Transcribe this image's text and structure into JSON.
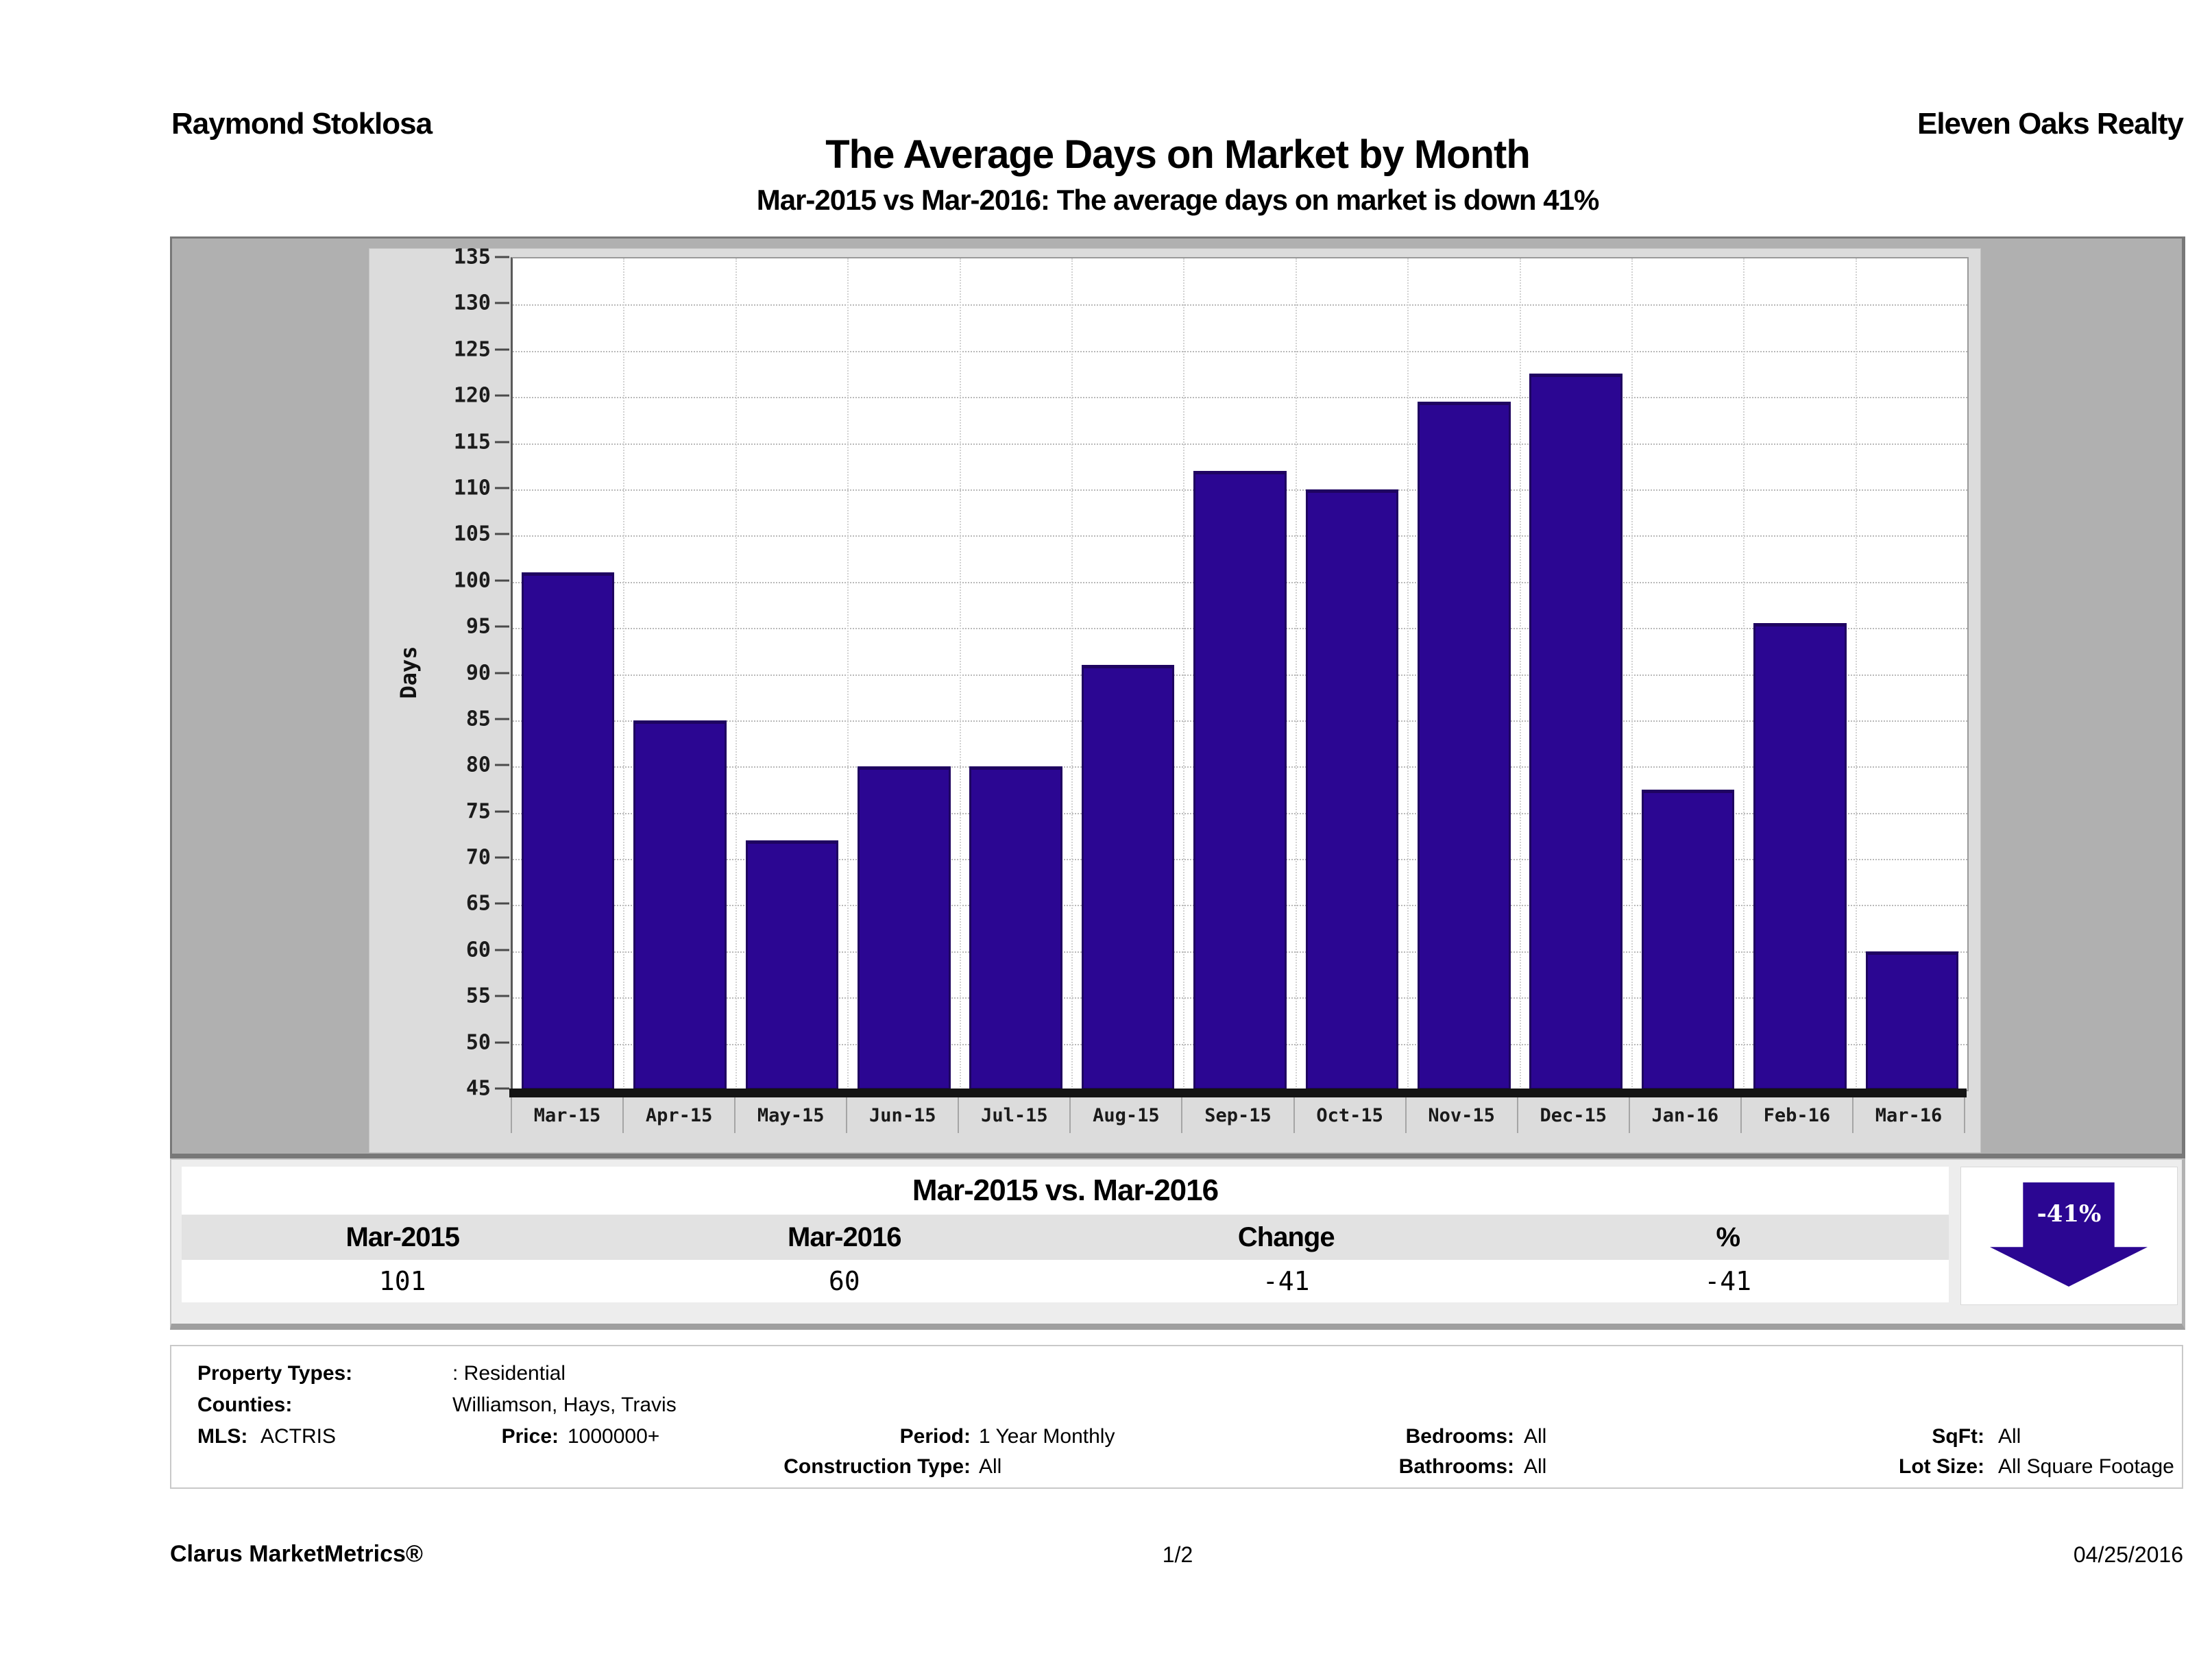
{
  "header": {
    "left": "Raymond Stoklosa",
    "right": "Eleven Oaks Realty"
  },
  "title": "The Average Days on Market by Month",
  "subtitle": "Mar-2015 vs Mar-2016: The average days on market is down 41%",
  "chart_data": {
    "type": "bar",
    "title": "The Average Days on Market by Month",
    "xlabel": "",
    "ylabel": "Days",
    "ylim": [
      45,
      135
    ],
    "ytick_step": 5,
    "grid": true,
    "legend_position": "none",
    "bar_color": "#2b0692",
    "categories": [
      "Mar-15",
      "Apr-15",
      "May-15",
      "Jun-15",
      "Jul-15",
      "Aug-15",
      "Sep-15",
      "Oct-15",
      "Nov-15",
      "Dec-15",
      "Jan-16",
      "Feb-16",
      "Mar-16"
    ],
    "values": [
      101,
      85,
      72,
      80,
      80,
      91,
      112,
      110,
      119.5,
      122.5,
      77.5,
      95.5,
      60
    ]
  },
  "comparison": {
    "title": "Mar-2015 vs. Mar-2016",
    "columns": [
      "Mar-2015",
      "Mar-2016",
      "Change",
      "%"
    ],
    "values": [
      "101",
      "60",
      "-41",
      "-41"
    ],
    "arrow_label": "-41%",
    "arrow_color": "#2b0692"
  },
  "criteria": {
    "property_types_label": "Property Types:",
    "property_types": ": Residential",
    "counties_label": "Counties:",
    "counties": "Williamson, Hays, Travis",
    "mls_label": "MLS:",
    "mls": "ACTRIS",
    "price_label": "Price:",
    "price": "1000000+",
    "period_label": "Period:",
    "period": "1 Year Monthly",
    "construction_label": "Construction Type:",
    "construction": "All",
    "bedrooms_label": "Bedrooms:",
    "bedrooms": "All",
    "bathrooms_label": "Bathrooms:",
    "bathrooms": "All",
    "sqft_label": "SqFt:",
    "sqft": "All",
    "lot_size_label": "Lot Size:",
    "lot_size": "All Square Footage"
  },
  "footer": {
    "left": "Clarus MarketMetrics®",
    "center": "1/2",
    "right": "04/25/2016"
  }
}
